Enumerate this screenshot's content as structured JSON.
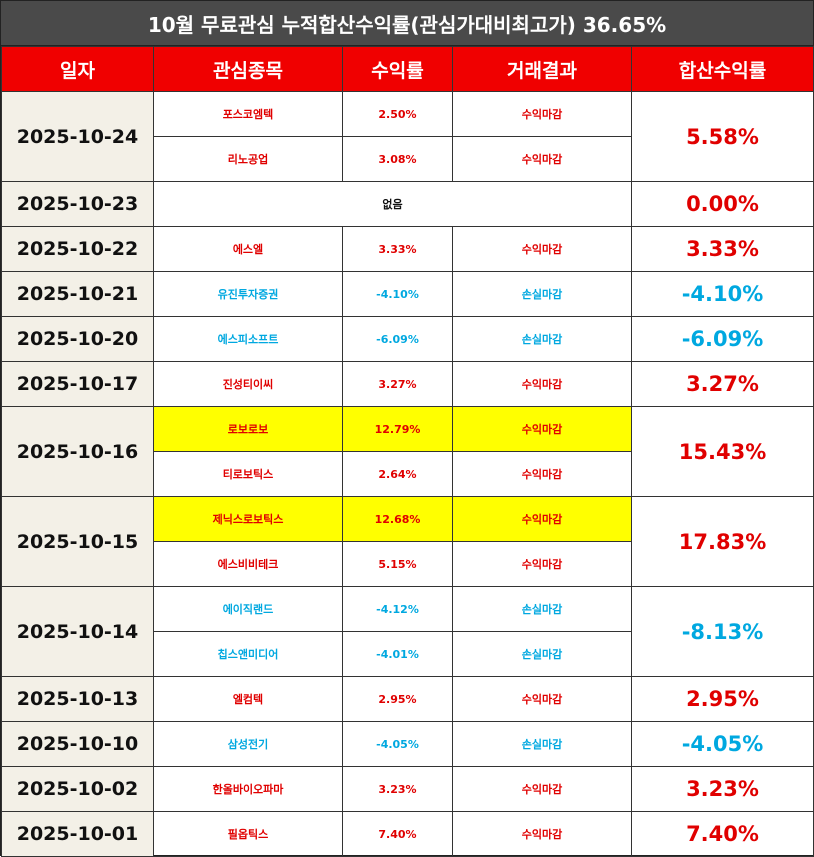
{
  "title": "10월 무료관심 누적합산수익률(관심가대비최고가) 36.65%",
  "headers": {
    "date": "일자",
    "stock": "관심종목",
    "return": "수익률",
    "result": "거래결과",
    "total": "합산수익률"
  },
  "rows": [
    {
      "date": "2025-10-24",
      "total": "5.58%",
      "total_color": "red",
      "items": [
        {
          "stock": "포스코엠텍",
          "pct": "2.50%",
          "result": "수익마감",
          "color": "red",
          "highlight": false
        },
        {
          "stock": "리노공업",
          "pct": "3.08%",
          "result": "수익마감",
          "color": "red",
          "highlight": false
        }
      ]
    },
    {
      "date": "2025-10-23",
      "total": "0.00%",
      "total_color": "red",
      "none": "없음",
      "items": []
    },
    {
      "date": "2025-10-22",
      "total": "3.33%",
      "total_color": "red",
      "items": [
        {
          "stock": "에스엘",
          "pct": "3.33%",
          "result": "수익마감",
          "color": "red",
          "highlight": false
        }
      ]
    },
    {
      "date": "2025-10-21",
      "total": "-4.10%",
      "total_color": "blue",
      "items": [
        {
          "stock": "유진투자증권",
          "pct": "-4.10%",
          "result": "손실마감",
          "color": "blue",
          "highlight": false
        }
      ]
    },
    {
      "date": "2025-10-20",
      "total": "-6.09%",
      "total_color": "blue",
      "items": [
        {
          "stock": "에스피소프트",
          "pct": "-6.09%",
          "result": "손실마감",
          "color": "blue",
          "highlight": false
        }
      ]
    },
    {
      "date": "2025-10-17",
      "total": "3.27%",
      "total_color": "red",
      "items": [
        {
          "stock": "진성티이씨",
          "pct": "3.27%",
          "result": "수익마감",
          "color": "red",
          "highlight": false
        }
      ]
    },
    {
      "date": "2025-10-16",
      "total": "15.43%",
      "total_color": "red",
      "items": [
        {
          "stock": "로보로보",
          "pct": "12.79%",
          "result": "수익마감",
          "color": "red",
          "highlight": true
        },
        {
          "stock": "티로보틱스",
          "pct": "2.64%",
          "result": "수익마감",
          "color": "red",
          "highlight": false
        }
      ]
    },
    {
      "date": "2025-10-15",
      "total": "17.83%",
      "total_color": "red",
      "items": [
        {
          "stock": "제닉스로보틱스",
          "pct": "12.68%",
          "result": "수익마감",
          "color": "red",
          "highlight": true
        },
        {
          "stock": "에스비비테크",
          "pct": "5.15%",
          "result": "수익마감",
          "color": "red",
          "highlight": false
        }
      ]
    },
    {
      "date": "2025-10-14",
      "total": "-8.13%",
      "total_color": "blue",
      "items": [
        {
          "stock": "에이직랜드",
          "pct": "-4.12%",
          "result": "손실마감",
          "color": "blue",
          "highlight": false
        },
        {
          "stock": "칩스앤미디어",
          "pct": "-4.01%",
          "result": "손실마감",
          "color": "blue",
          "highlight": false
        }
      ]
    },
    {
      "date": "2025-10-13",
      "total": "2.95%",
      "total_color": "red",
      "items": [
        {
          "stock": "엘컴텍",
          "pct": "2.95%",
          "result": "수익마감",
          "color": "red",
          "highlight": false
        }
      ]
    },
    {
      "date": "2025-10-10",
      "total": "-4.05%",
      "total_color": "blue",
      "items": [
        {
          "stock": "삼성전기",
          "pct": "-4.05%",
          "result": "손실마감",
          "color": "blue",
          "highlight": false
        }
      ]
    },
    {
      "date": "2025-10-02",
      "total": "3.23%",
      "total_color": "red",
      "items": [
        {
          "stock": "한올바이오파마",
          "pct": "3.23%",
          "result": "수익마감",
          "color": "red",
          "highlight": false
        }
      ]
    },
    {
      "date": "2025-10-01",
      "total": "7.40%",
      "total_color": "red",
      "items": [
        {
          "stock": "필옵틱스",
          "pct": "7.40%",
          "result": "수익마감",
          "color": "red",
          "highlight": false
        }
      ]
    }
  ],
  "colors": {
    "red": "#e00000",
    "blue": "#00a8e0",
    "header_bg": "#f00000",
    "title_bg": "#4a4a4a",
    "date_bg": "#f3f0e7",
    "highlight": "#ffff00"
  }
}
